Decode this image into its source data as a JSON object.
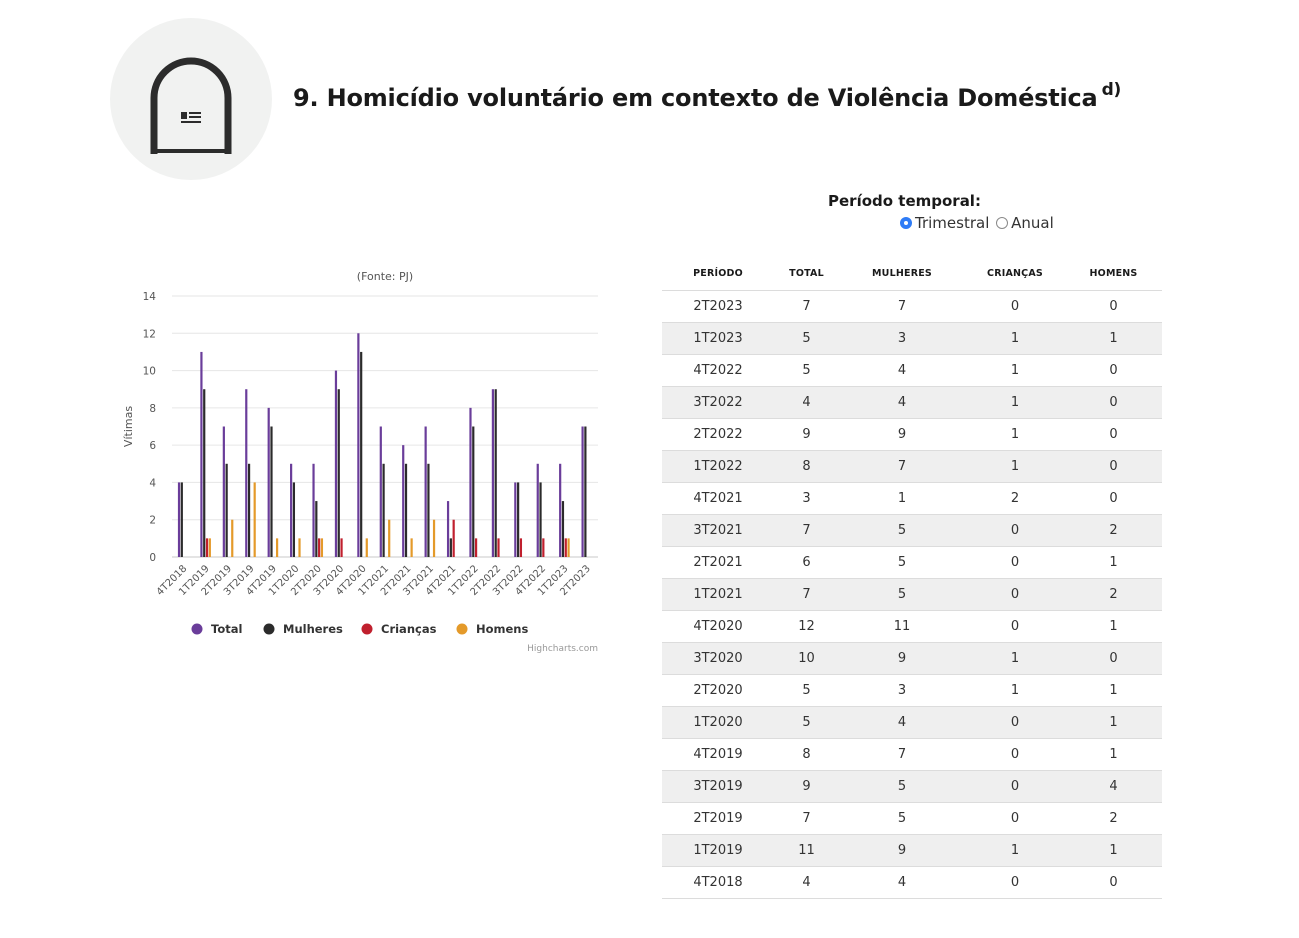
{
  "header": {
    "icon": "document-arch-icon",
    "title": "9. Homicídio voluntário em contexto de Violência Doméstica",
    "title_note": "d)"
  },
  "period_selector": {
    "label": "Período temporal:",
    "options": [
      {
        "label": "Trimestral",
        "selected": true
      },
      {
        "label": "Anual",
        "selected": false
      }
    ]
  },
  "chart_data": {
    "type": "bar",
    "subtitle": "(Fonte: PJ)",
    "ylabel": "Vítimas",
    "xlabel": "",
    "ylim": [
      0,
      14
    ],
    "yticks": [
      0,
      2,
      4,
      6,
      8,
      10,
      12,
      14
    ],
    "grid": true,
    "legend_position": "bottom",
    "credits": "Highcharts.com",
    "categories": [
      "4T2018",
      "1T2019",
      "2T2019",
      "3T2019",
      "4T2019",
      "1T2020",
      "2T2020",
      "3T2020",
      "4T2020",
      "1T2021",
      "2T2021",
      "3T2021",
      "4T2021",
      "1T2022",
      "2T2022",
      "3T2022",
      "4T2022",
      "1T2023",
      "2T2023"
    ],
    "series": [
      {
        "name": "Total",
        "color": "#6a3d9a",
        "values": [
          4,
          11,
          7,
          9,
          8,
          5,
          5,
          10,
          12,
          7,
          6,
          7,
          3,
          8,
          9,
          4,
          5,
          5,
          7
        ]
      },
      {
        "name": "Mulheres",
        "color": "#2b2b2b",
        "values": [
          4,
          9,
          5,
          5,
          7,
          4,
          3,
          9,
          11,
          5,
          5,
          5,
          1,
          7,
          9,
          4,
          4,
          3,
          7
        ]
      },
      {
        "name": "Crianças",
        "color": "#c0202e",
        "values": [
          0,
          1,
          0,
          0,
          0,
          0,
          1,
          1,
          0,
          0,
          0,
          0,
          2,
          1,
          1,
          1,
          1,
          1,
          0
        ]
      },
      {
        "name": "Homens",
        "color": "#e49a2a",
        "values": [
          0,
          1,
          2,
          4,
          1,
          1,
          1,
          0,
          1,
          2,
          1,
          2,
          0,
          0,
          0,
          0,
          0,
          1,
          0
        ]
      }
    ]
  },
  "table": {
    "headers": [
      "PERÍODO",
      "TOTAL",
      "MULHERES",
      "CRIANÇAS",
      "HOMENS"
    ],
    "rows": [
      [
        "2T2023",
        "7",
        "7",
        "0",
        "0"
      ],
      [
        "1T2023",
        "5",
        "3",
        "1",
        "1"
      ],
      [
        "4T2022",
        "5",
        "4",
        "1",
        "0"
      ],
      [
        "3T2022",
        "4",
        "4",
        "1",
        "0"
      ],
      [
        "2T2022",
        "9",
        "9",
        "1",
        "0"
      ],
      [
        "1T2022",
        "8",
        "7",
        "1",
        "0"
      ],
      [
        "4T2021",
        "3",
        "1",
        "2",
        "0"
      ],
      [
        "3T2021",
        "7",
        "5",
        "0",
        "2"
      ],
      [
        "2T2021",
        "6",
        "5",
        "0",
        "1"
      ],
      [
        "1T2021",
        "7",
        "5",
        "0",
        "2"
      ],
      [
        "4T2020",
        "12",
        "11",
        "0",
        "1"
      ],
      [
        "3T2020",
        "10",
        "9",
        "1",
        "0"
      ],
      [
        "2T2020",
        "5",
        "3",
        "1",
        "1"
      ],
      [
        "1T2020",
        "5",
        "4",
        "0",
        "1"
      ],
      [
        "4T2019",
        "8",
        "7",
        "0",
        "1"
      ],
      [
        "3T2019",
        "9",
        "5",
        "0",
        "4"
      ],
      [
        "2T2019",
        "7",
        "5",
        "0",
        "2"
      ],
      [
        "1T2019",
        "11",
        "9",
        "1",
        "1"
      ],
      [
        "4T2018",
        "4",
        "4",
        "0",
        "0"
      ]
    ]
  }
}
